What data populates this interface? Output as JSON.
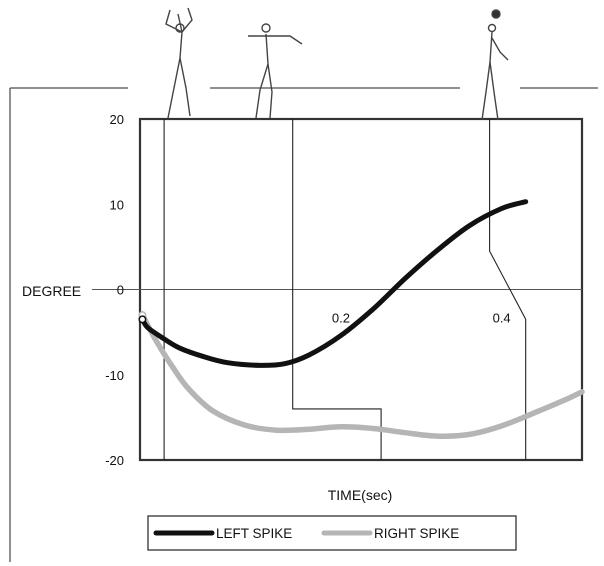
{
  "chart_data": {
    "type": "line",
    "title": "",
    "xlabel": "TIME(sec)",
    "ylabel": "DEGREE",
    "xlim": [
      -0.05,
      0.5
    ],
    "ylim": [
      -20,
      20
    ],
    "yticks": [
      20,
      10,
      0,
      -10,
      -20
    ],
    "xticks": [
      0.2,
      0.4
    ],
    "ytick_labels": [
      "20",
      "10",
      "0",
      "-10",
      "-20"
    ],
    "xtick_labels": [
      "0.2",
      "0.4"
    ],
    "grid": false,
    "legend_position": "bottom",
    "series": [
      {
        "name": "LEFT SPIKE",
        "color": "#111111",
        "x": [
          -0.047,
          -0.04,
          -0.02,
          0.0,
          0.03,
          0.06,
          0.1,
          0.13,
          0.16,
          0.2,
          0.24,
          0.28,
          0.32,
          0.36,
          0.4,
          0.43
        ],
        "y": [
          -3.5,
          -4.5,
          -5.8,
          -6.9,
          -7.9,
          -8.6,
          -8.9,
          -8.7,
          -7.7,
          -5.4,
          -2.3,
          1.3,
          4.6,
          7.5,
          9.5,
          10.3
        ]
      },
      {
        "name": "RIGHT SPIKE",
        "color": "#b5b5b5",
        "x": [
          -0.047,
          -0.03,
          -0.01,
          0.01,
          0.04,
          0.08,
          0.12,
          0.16,
          0.2,
          0.24,
          0.28,
          0.32,
          0.36,
          0.4,
          0.44,
          0.48,
          0.5
        ],
        "y": [
          -3.0,
          -6.0,
          -9.0,
          -11.6,
          -14.2,
          -15.9,
          -16.5,
          -16.4,
          -16.1,
          -16.3,
          -16.8,
          -17.2,
          -17.0,
          -16.0,
          -14.5,
          -12.9,
          -12.0
        ]
      }
    ],
    "event_markers": [
      {
        "name": "marker-1",
        "points": [
          [
            -0.02,
            20
          ],
          [
            -0.02,
            -20
          ]
        ]
      },
      {
        "name": "marker-2",
        "points": [
          [
            0.14,
            20
          ],
          [
            0.14,
            -14
          ],
          [
            0.25,
            -14
          ],
          [
            0.25,
            -20
          ]
        ]
      },
      {
        "name": "marker-3",
        "points": [
          [
            0.385,
            20
          ],
          [
            0.385,
            4.5
          ],
          [
            0.43,
            -3.5
          ],
          [
            0.43,
            -20
          ]
        ]
      }
    ]
  }
}
